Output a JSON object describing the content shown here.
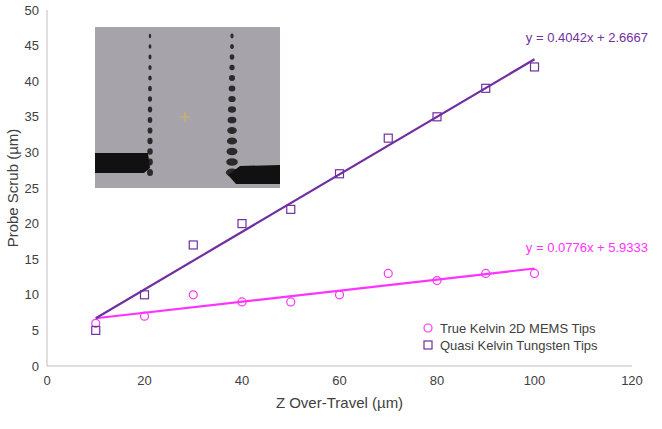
{
  "chart_data": {
    "type": "scatter",
    "x_label": "Z Over-Travel (µm)",
    "y_label": "Probe Scrub (µm)",
    "x": [
      10,
      20,
      30,
      40,
      50,
      60,
      70,
      80,
      90,
      100
    ],
    "series": [
      {
        "name": "True Kelvin 2D MEMS Tips",
        "color": "#ff33ff",
        "marker": "circle",
        "values": [
          6,
          7,
          10,
          9,
          9,
          10,
          13,
          12,
          13,
          13
        ],
        "trend_slope": 0.0776,
        "trend_intercept": 5.9333,
        "trend_label": "y = 0.0776x + 5.9333"
      },
      {
        "name": "Quasi Kelvin Tungsten Tips",
        "color": "#7030a0",
        "marker": "square",
        "values": [
          5,
          10,
          17,
          20,
          22,
          27,
          32,
          35,
          39,
          42
        ],
        "trend_slope": 0.4042,
        "trend_intercept": 2.6667,
        "trend_label": "y = 0.4042x + 2.6667"
      }
    ],
    "xlim": [
      0,
      120
    ],
    "xticks": [
      0,
      20,
      40,
      60,
      80,
      100,
      120
    ],
    "ylim": [
      0,
      50
    ],
    "yticks": [
      0,
      5,
      10,
      15,
      20,
      25,
      30,
      35,
      40,
      45,
      50
    ],
    "grid": false,
    "legend": "bottom-right"
  }
}
